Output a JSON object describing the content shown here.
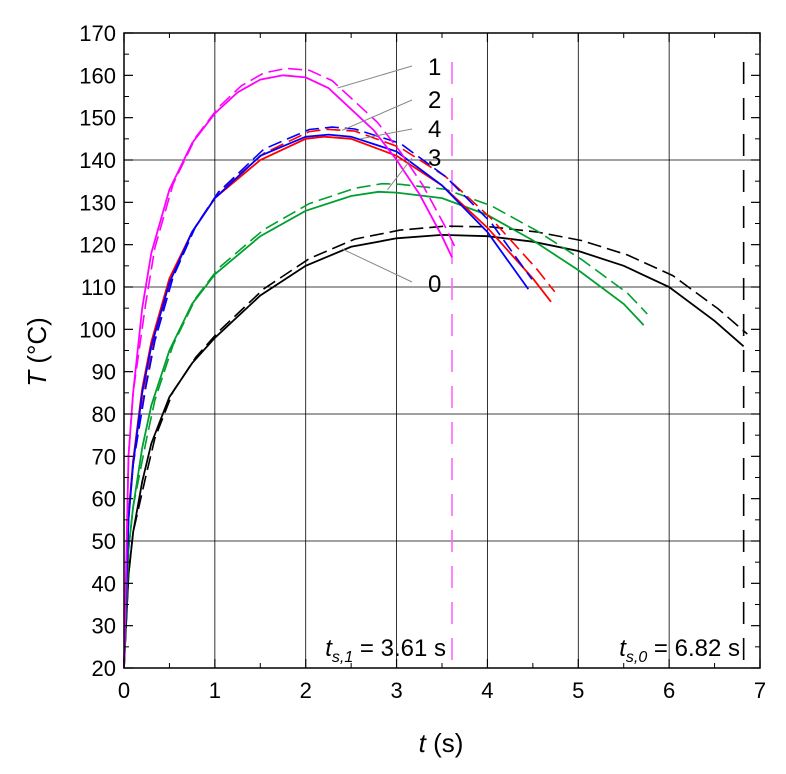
{
  "chart_data": {
    "type": "line",
    "xlabel_var": "t",
    "xlabel_unit": " (s)",
    "ylabel_var": "T",
    "ylabel_unit": " (°C)",
    "xlim": [
      0,
      7
    ],
    "ylim": [
      20,
      170
    ],
    "x_ticks": [
      "0",
      "1",
      "2",
      "3",
      "4",
      "5",
      "6",
      "7"
    ],
    "y_ticks": [
      "20",
      "30",
      "40",
      "50",
      "60",
      "70",
      "80",
      "90",
      "100",
      "110",
      "120",
      "130",
      "140",
      "150",
      "160",
      "170"
    ],
    "grid": true,
    "series": [
      {
        "label": "0",
        "color": "#000000",
        "t_end": 6.82,
        "points": [
          [
            0,
            20
          ],
          [
            0.05,
            42
          ],
          [
            0.1,
            52
          ],
          [
            0.2,
            64
          ],
          [
            0.3,
            73
          ],
          [
            0.5,
            84
          ],
          [
            0.75,
            92
          ],
          [
            1,
            98
          ],
          [
            1.5,
            108
          ],
          [
            2,
            115
          ],
          [
            2.5,
            119.5
          ],
          [
            3,
            121.5
          ],
          [
            3.5,
            122.3
          ],
          [
            4,
            122
          ],
          [
            4.5,
            120.7
          ],
          [
            5,
            118.5
          ],
          [
            5.5,
            115
          ],
          [
            6,
            110
          ],
          [
            6.5,
            102
          ],
          [
            6.82,
            96
          ]
        ]
      },
      {
        "label": "1",
        "color": "#ff00ff",
        "t_end": 3.61,
        "points": [
          [
            0,
            20
          ],
          [
            0.05,
            70
          ],
          [
            0.1,
            85
          ],
          [
            0.2,
            105
          ],
          [
            0.3,
            118
          ],
          [
            0.5,
            133
          ],
          [
            0.75,
            144
          ],
          [
            1,
            151
          ],
          [
            1.25,
            156
          ],
          [
            1.5,
            159
          ],
          [
            1.75,
            160
          ],
          [
            2,
            159.5
          ],
          [
            2.25,
            157
          ],
          [
            2.5,
            152
          ],
          [
            2.75,
            147
          ],
          [
            3,
            140
          ],
          [
            3.25,
            132
          ],
          [
            3.5,
            122
          ],
          [
            3.61,
            117
          ]
        ]
      },
      {
        "label": "2",
        "color": "#0000ff",
        "t_end": 4.45,
        "points": [
          [
            0,
            20
          ],
          [
            0.05,
            55
          ],
          [
            0.1,
            68
          ],
          [
            0.2,
            85
          ],
          [
            0.3,
            96
          ],
          [
            0.5,
            111
          ],
          [
            0.75,
            123
          ],
          [
            1,
            131
          ],
          [
            1.5,
            141
          ],
          [
            2,
            145.5
          ],
          [
            2.25,
            146
          ],
          [
            2.5,
            145.5
          ],
          [
            3,
            142
          ],
          [
            3.5,
            134
          ],
          [
            4,
            123
          ],
          [
            4.45,
            109.5
          ]
        ]
      },
      {
        "label": "3",
        "color": "#00a030",
        "t_end": 5.72,
        "points": [
          [
            0,
            20
          ],
          [
            0.05,
            48
          ],
          [
            0.1,
            58
          ],
          [
            0.2,
            72
          ],
          [
            0.3,
            82
          ],
          [
            0.5,
            95
          ],
          [
            0.75,
            106
          ],
          [
            1,
            113
          ],
          [
            1.5,
            122
          ],
          [
            2,
            128
          ],
          [
            2.5,
            131.5
          ],
          [
            2.8,
            132.5
          ],
          [
            3,
            132.3
          ],
          [
            3.5,
            131
          ],
          [
            4,
            127
          ],
          [
            4.5,
            121
          ],
          [
            5,
            114
          ],
          [
            5.5,
            106
          ],
          [
            5.72,
            101
          ]
        ]
      },
      {
        "label": "4",
        "color": "#ff0000",
        "t_end": 4.7,
        "points": [
          [
            0,
            20
          ],
          [
            0.05,
            56
          ],
          [
            0.1,
            69
          ],
          [
            0.2,
            86
          ],
          [
            0.3,
            97
          ],
          [
            0.5,
            112
          ],
          [
            0.75,
            123
          ],
          [
            1,
            131
          ],
          [
            1.5,
            140
          ],
          [
            2,
            145
          ],
          [
            2.2,
            145.5
          ],
          [
            2.5,
            145
          ],
          [
            3,
            141
          ],
          [
            3.5,
            134
          ],
          [
            4,
            124
          ],
          [
            4.5,
            112
          ],
          [
            4.7,
            106.5
          ]
        ]
      }
    ],
    "labels": [
      "1",
      "2",
      "4",
      "3",
      "0"
    ],
    "vlines": [
      {
        "t": 3.61,
        "color": "#ff66ff"
      },
      {
        "t": 6.82,
        "color": "#000000"
      }
    ],
    "annotations": [
      {
        "var": "t",
        "sub": "s,1",
        "text": " = 3.61 s"
      },
      {
        "var": "t",
        "sub": "s,0",
        "text": " = 6.82 s"
      }
    ]
  }
}
